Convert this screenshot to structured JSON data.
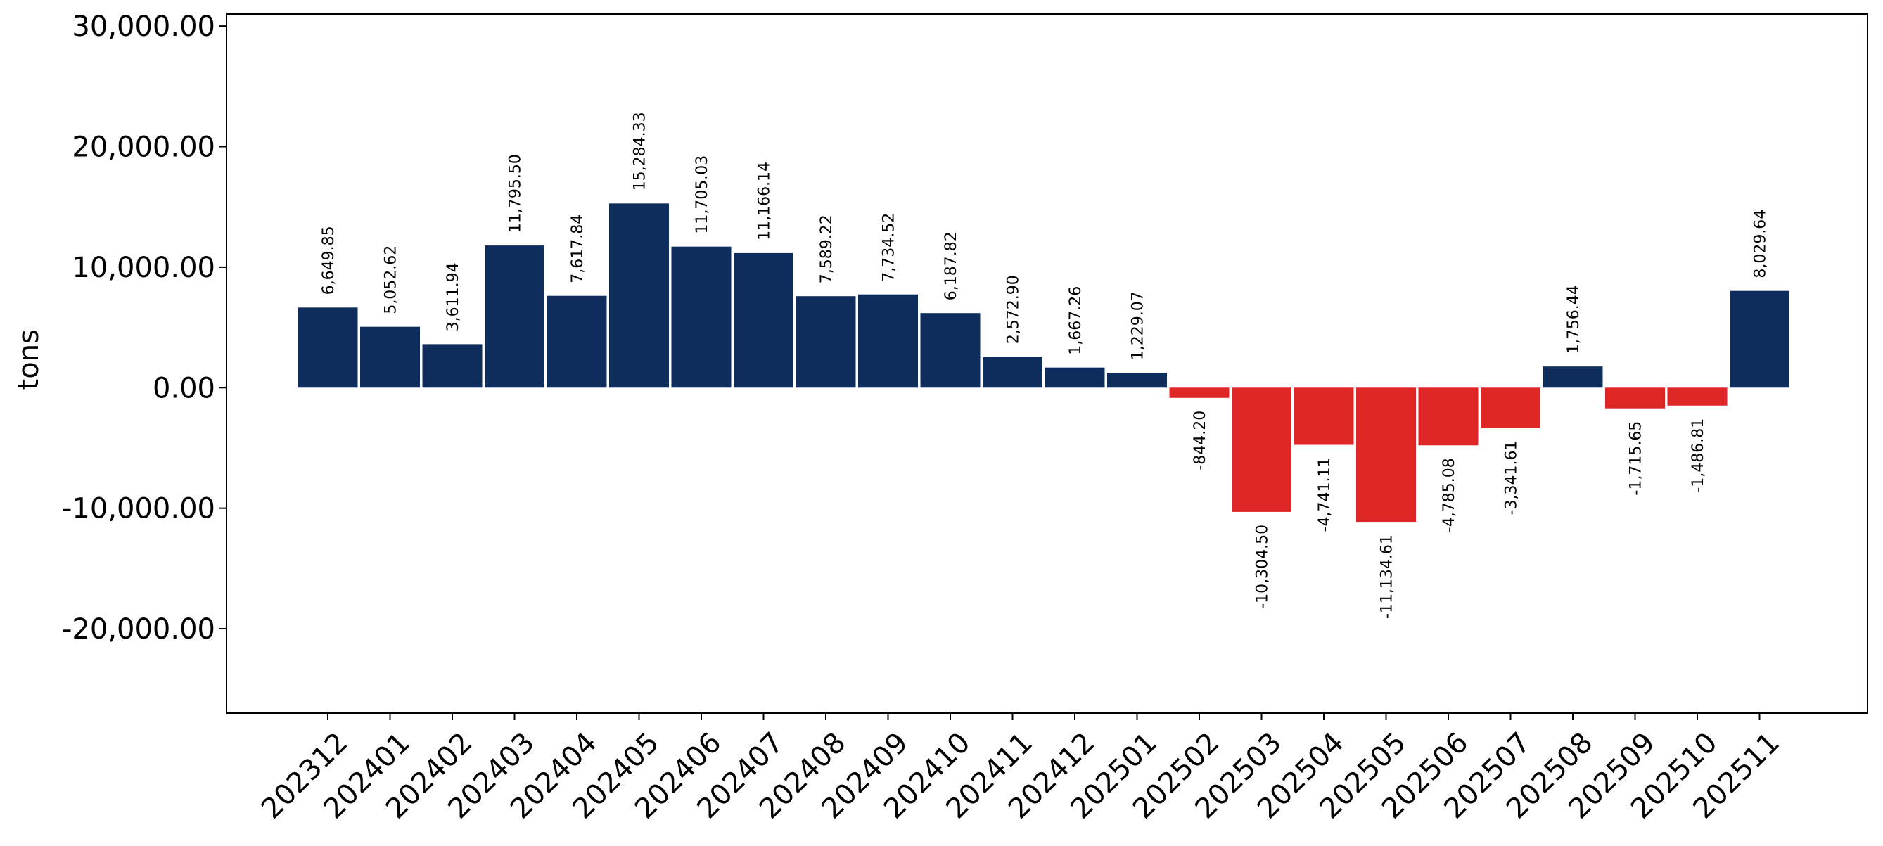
{
  "chart_data": {
    "type": "bar",
    "title": "",
    "xlabel": "",
    "ylabel": "tons",
    "ylim": [
      -27000,
      31000
    ],
    "yticks": [
      -20000,
      -10000,
      0,
      10000,
      20000,
      30000
    ],
    "ytick_labels": [
      "-20,000.00",
      "-10,000.00",
      "0.00",
      "10,000.00",
      "20,000.00",
      "30,000.00"
    ],
    "grid": false,
    "legend": "none",
    "colors": {
      "positive": "#0f2d5c",
      "negative": "#de2626"
    },
    "categories": [
      "202312",
      "202401",
      "202402",
      "202403",
      "202404",
      "202405",
      "202406",
      "202407",
      "202408",
      "202409",
      "202410",
      "202411",
      "202412",
      "202501",
      "202502",
      "202503",
      "202504",
      "202505",
      "202506",
      "202507",
      "202508",
      "202509",
      "202510",
      "202511"
    ],
    "values": [
      6649.85,
      5052.62,
      3611.94,
      11795.5,
      7617.84,
      15284.33,
      11705.03,
      11166.14,
      7589.22,
      7734.52,
      6187.82,
      2572.9,
      1667.26,
      1229.07,
      -844.2,
      -10304.5,
      -4741.11,
      -11134.61,
      -4785.08,
      -3341.61,
      1756.44,
      -1715.65,
      -1486.81,
      8029.64
    ],
    "data_labels": [
      "6,649.85",
      "5,052.62",
      "3,611.94",
      "11,795.50",
      "7,617.84",
      "15,284.33",
      "11,705.03",
      "11,166.14",
      "7,589.22",
      "7,734.52",
      "6,187.82",
      "2,572.90",
      "1,667.26",
      "1,229.07",
      "-844.20",
      "-10,304.50",
      "-4,741.11",
      "-11,134.61",
      "-4,785.08",
      "-3,341.61",
      "1,756.44",
      "-1,715.65",
      "-1,486.81",
      "8,029.64"
    ]
  }
}
